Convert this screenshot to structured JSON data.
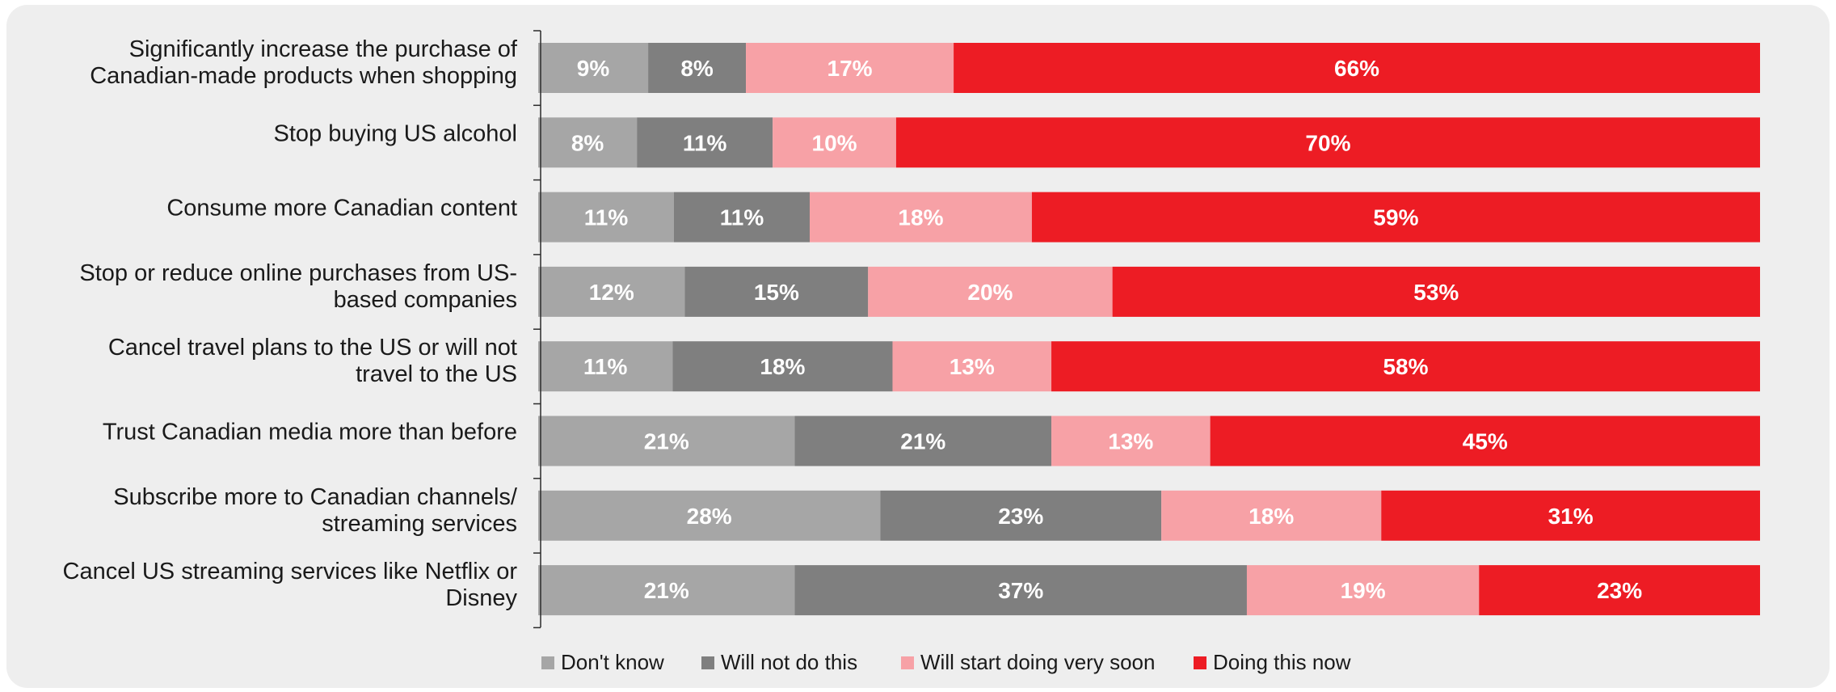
{
  "chart_data": {
    "type": "bar",
    "orientation": "horizontal",
    "stacked": true,
    "normalized": true,
    "categories": [
      [
        "Significantly increase the purchase of",
        "Canadian-made products when shopping"
      ],
      [
        "Stop buying US alcohol"
      ],
      [
        "Consume more Canadian content"
      ],
      [
        "Stop or reduce online purchases from US-",
        "based companies"
      ],
      [
        "Cancel travel plans to the US or will not",
        "travel to the US"
      ],
      [
        "Trust Canadian media more than before"
      ],
      [
        "Subscribe more to Canadian channels/",
        "streaming services"
      ],
      [
        "Cancel US streaming services like Netflix or",
        "Disney"
      ]
    ],
    "series": [
      {
        "name": "Don't know",
        "color": "#a6a6a6",
        "values": [
          9,
          8,
          11,
          12,
          11,
          21,
          28,
          21
        ]
      },
      {
        "name": "Will not do this",
        "color": "#7f7f7f",
        "values": [
          8,
          11,
          11,
          15,
          18,
          21,
          23,
          37
        ]
      },
      {
        "name": "Will start doing very soon",
        "color": "#f7a1a6",
        "values": [
          17,
          10,
          18,
          20,
          13,
          13,
          18,
          19
        ]
      },
      {
        "name": "Doing this now",
        "color": "#ed1c24",
        "values": [
          66,
          70,
          59,
          53,
          58,
          45,
          31,
          23
        ]
      }
    ],
    "value_suffix": "%",
    "legend_position": "bottom",
    "grid": false
  }
}
